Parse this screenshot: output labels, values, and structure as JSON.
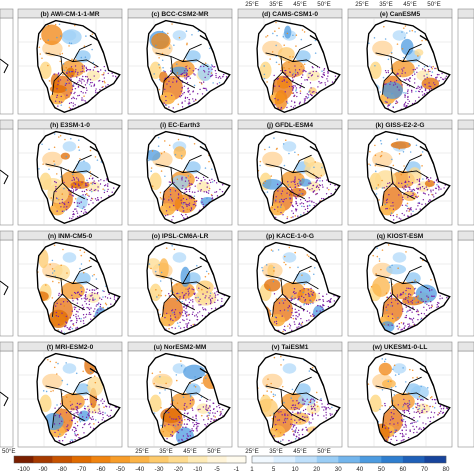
{
  "panels_row1": [
    {
      "title": "(b) AWI-CM-1-1-MR"
    },
    {
      "title": "(c) BCC-CSM2-MR"
    },
    {
      "title": "(d) CAMS-CSM1-0"
    },
    {
      "title": "(e) CanESM5"
    }
  ],
  "panels_row2": [
    {
      "title": "(h) E3SM-1-0"
    },
    {
      "title": "(i) EC-Earth3"
    },
    {
      "title": "(j) GFDL-ESM4"
    },
    {
      "title": "(k) GISS-E2-2-G"
    }
  ],
  "panels_row3": [
    {
      "title": "(n) INM-CM5-0"
    },
    {
      "title": "(o) IPSL-CM6A-LR"
    },
    {
      "title": "(p) KACE-1-0-G"
    },
    {
      "title": "(q) KIOST-ESM"
    }
  ],
  "panels_row4": [
    {
      "title": "(t) MRI-ESM2-0"
    },
    {
      "title": "(u) NorESM2-MM"
    },
    {
      "title": "(v) TaiESM1"
    },
    {
      "title": "(w) UKESM1-0-LL"
    }
  ],
  "top_ticks": [
    "25°E",
    "35°E",
    "45°E",
    "50°E"
  ],
  "bottom_ticks": [
    "25°E",
    "35°E",
    "45°E",
    "50°E"
  ],
  "left_edge_tick": "50°E",
  "colorbar": {
    "neg_labels": [
      "-100",
      "-90",
      "-80",
      "-70",
      "-60",
      "-50",
      "-40",
      "-30",
      "-20",
      "-10",
      "-5",
      "-1"
    ],
    "pos_labels": [
      "1",
      "5",
      "10",
      "20",
      "30",
      "40",
      "50",
      "60",
      "70",
      "80"
    ],
    "neg_colors": [
      "#7a1f00",
      "#a63a00",
      "#c75300",
      "#e06b00",
      "#f08410",
      "#f79d2a",
      "#fbb347",
      "#fdca6c",
      "#fedb8f",
      "#feebb7",
      "#fff4d8",
      "#fffbee"
    ],
    "pos_colors": [
      "#f2f9ff",
      "#dcefff",
      "#bfe0fb",
      "#9acdf5",
      "#73b5ec",
      "#4d9be0",
      "#2f7ecf",
      "#1f60b8",
      "#17449c"
    ]
  },
  "colors": {
    "stipple": "#7b1fa2",
    "outline": "#000000",
    "grid": "#d0d0d0",
    "panel_frame": "#8a8a8a"
  }
}
